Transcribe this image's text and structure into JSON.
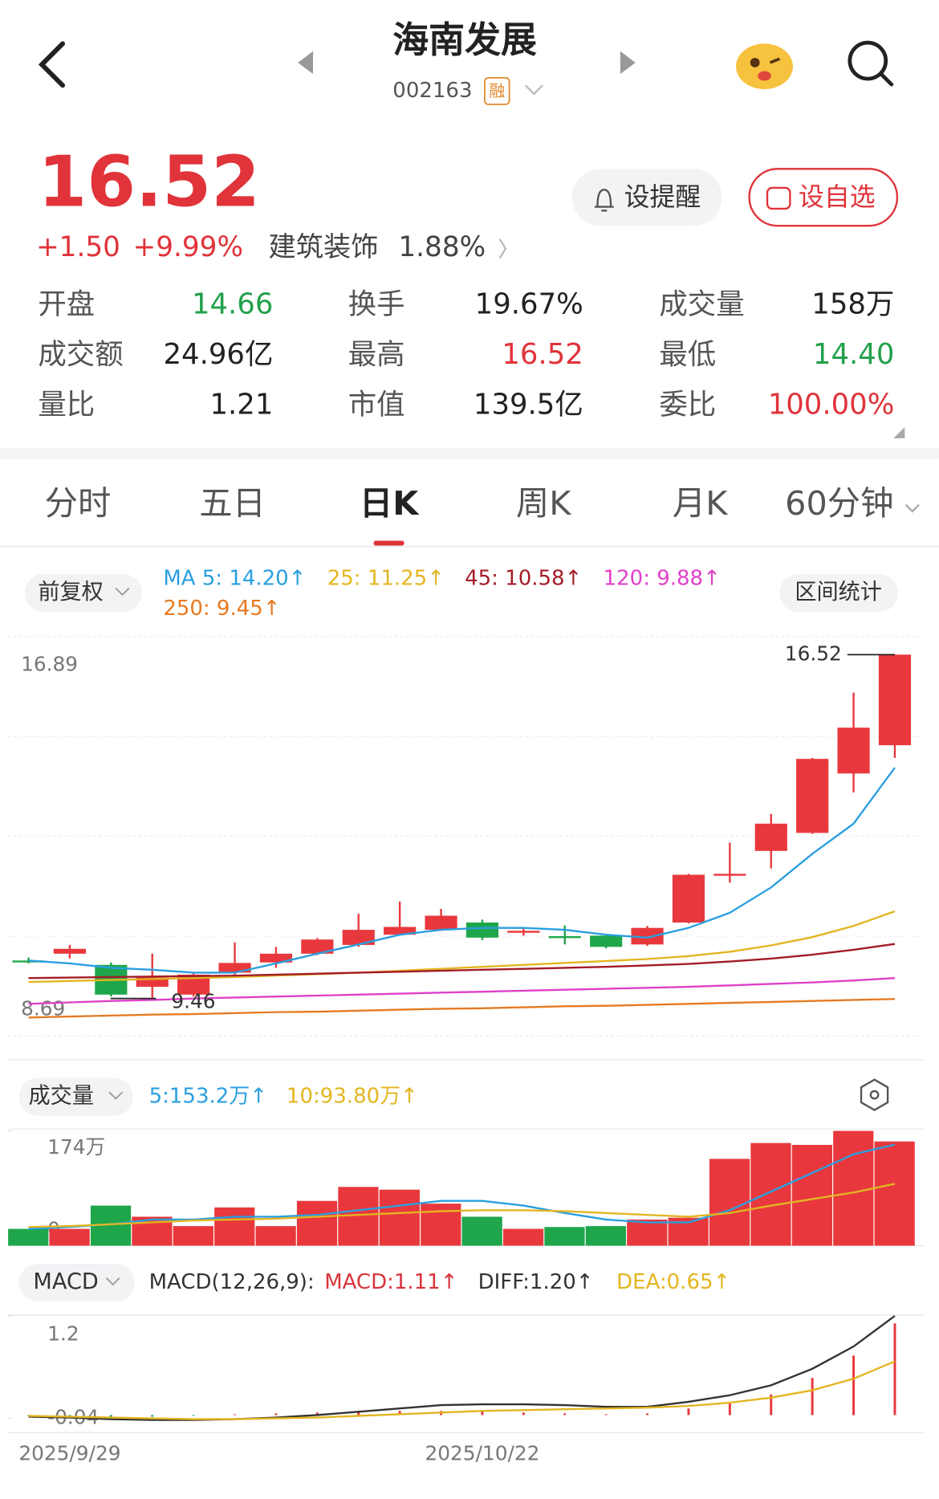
{
  "header": {
    "title": "海南发展",
    "code": "002163",
    "badge": "融"
  },
  "quote": {
    "price": "16.52",
    "change": "+1.50",
    "pct": "+9.99%",
    "sector": "建筑装饰",
    "sector_pct": "1.88%",
    "remind": "设提醒",
    "watch": "设自选"
  },
  "stats": [
    {
      "label": "开盘",
      "value": "14.66",
      "color": "#22a04a"
    },
    {
      "label": "换手",
      "value": "19.67%",
      "color": "#222222"
    },
    {
      "label": "成交量",
      "value": "158万",
      "color": "#222222"
    },
    {
      "label": "成交额",
      "value": "24.96亿",
      "color": "#222222"
    },
    {
      "label": "最高",
      "value": "16.52",
      "color": "#e0333a"
    },
    {
      "label": "最低",
      "value": "14.40",
      "color": "#22a04a"
    },
    {
      "label": "量比",
      "value": "1.21",
      "color": "#222222"
    },
    {
      "label": "市值",
      "value": "139.5亿",
      "color": "#222222"
    },
    {
      "label": "委比",
      "value": "100.00%",
      "color": "#e0333a"
    }
  ],
  "tabs": {
    "items": [
      "分时",
      "五日",
      "日K",
      "周K",
      "月K",
      "60分钟"
    ],
    "active": 2
  },
  "controls": {
    "adjust": "前复权",
    "range_stats": "区间统计",
    "volume": "成交量",
    "macd": "MACD",
    "macd_params": "MACD(12,26,9):"
  },
  "chart_data": [
    {
      "type": "candlestick",
      "categories": [
        null,
        "2025/9/29",
        null,
        null,
        null,
        null,
        null,
        null,
        null,
        null,
        null,
        "2025/10/22",
        null,
        null,
        null,
        null,
        null,
        null,
        null,
        null,
        null,
        null
      ],
      "open": [
        10.24,
        10.38,
        10.15,
        9.7,
        9.54,
        9.99,
        10.2,
        10.38,
        10.56,
        10.77,
        10.87,
        11.02,
        10.81,
        10.74,
        10.75,
        10.57,
        11.02,
        11.98,
        12.49,
        12.86,
        14.08,
        14.66
      ],
      "high": [
        10.3,
        10.56,
        10.2,
        10.38,
        9.98,
        10.61,
        10.52,
        10.7,
        11.2,
        11.45,
        11.3,
        11.08,
        10.9,
        10.96,
        10.78,
        10.95,
        12.02,
        12.66,
        13.25,
        14.4,
        15.74,
        16.52
      ],
      "low": [
        10.18,
        10.28,
        9.5,
        9.46,
        9.5,
        9.95,
        10.09,
        10.35,
        10.52,
        10.75,
        10.85,
        10.66,
        10.75,
        10.57,
        10.49,
        10.54,
        11.0,
        11.84,
        12.13,
        12.84,
        13.69,
        14.4
      ],
      "close": [
        10.22,
        10.48,
        9.54,
        9.89,
        9.95,
        10.19,
        10.38,
        10.67,
        10.87,
        10.93,
        11.16,
        10.71,
        10.85,
        10.72,
        10.52,
        10.91,
        12.0,
        12.02,
        13.05,
        14.38,
        15.02,
        16.52
      ],
      "up_color": "#e8383d",
      "down_color": "#1fa64a",
      "series": [
        {
          "name": "MA 5: 14.20↑",
          "color": "#2a9fe0",
          "values": [
            10.24,
            10.18,
            10.09,
            10.05,
            9.99,
            9.99,
            10.18,
            10.38,
            10.57,
            10.77,
            10.87,
            10.91,
            10.91,
            10.87,
            10.77,
            10.71,
            10.91,
            11.22,
            11.74,
            12.43,
            13.05,
            14.2
          ]
        },
        {
          "name": "25: 11.25↑",
          "color": "#e3b520",
          "values": [
            9.8,
            9.82,
            9.84,
            9.86,
            9.88,
            9.9,
            9.93,
            9.96,
            9.99,
            10.03,
            10.07,
            10.11,
            10.15,
            10.19,
            10.23,
            10.27,
            10.33,
            10.42,
            10.55,
            10.72,
            10.95,
            11.25
          ]
        },
        {
          "name": "45: 10.58↑",
          "color": "#a31c28",
          "values": [
            9.88,
            9.89,
            9.9,
            9.91,
            9.92,
            9.93,
            9.95,
            9.97,
            9.99,
            10.01,
            10.03,
            10.05,
            10.07,
            10.09,
            10.11,
            10.14,
            10.17,
            10.22,
            10.28,
            10.36,
            10.46,
            10.58
          ]
        },
        {
          "name": "120: 9.88↑",
          "color": "#e040c8",
          "values": [
            9.35,
            9.38,
            9.41,
            9.43,
            9.46,
            9.48,
            9.5,
            9.52,
            9.54,
            9.56,
            9.58,
            9.6,
            9.62,
            9.64,
            9.66,
            9.68,
            9.7,
            9.73,
            9.76,
            9.79,
            9.83,
            9.88
          ]
        },
        {
          "name": "250: 9.45↑",
          "color": "#e67a22",
          "values": [
            9.07,
            9.09,
            9.11,
            9.13,
            9.14,
            9.16,
            9.18,
            9.19,
            9.21,
            9.23,
            9.25,
            9.26,
            9.28,
            9.3,
            9.31,
            9.33,
            9.35,
            9.37,
            9.39,
            9.41,
            9.43,
            9.45
          ]
        }
      ],
      "max_label": 16.52,
      "min_label": 9.46,
      "ylim": [
        8.69,
        16.89
      ],
      "yticks": [
        16.89,
        8.69
      ],
      "grid": true
    },
    {
      "type": "bar",
      "values": [
        25.5,
        25.5,
        60.8,
        43.9,
        29.7,
        58.0,
        29.7,
        67.9,
        89.1,
        84.9,
        63.7,
        43.9,
        25.5,
        28.3,
        29.7,
        39.6,
        42.4,
        131.6,
        155.6,
        152.8,
        174,
        158
      ],
      "series": [
        {
          "name": "5:153.2万↑",
          "color": "#2a9fe0",
          "values": [
            25.5,
            28.3,
            32.5,
            39.6,
            39.6,
            43.9,
            43.9,
            46.7,
            53.8,
            60.8,
            67.9,
            67.9,
            60.8,
            49.5,
            39.6,
            35.4,
            35.4,
            53.8,
            82.0,
            110.3,
            138.6,
            153.2
          ]
        },
        {
          "name": "10:93.80万↑",
          "color": "#e3b520",
          "values": [
            28.3,
            29.7,
            32.5,
            35.4,
            38.2,
            39.6,
            41.0,
            43.9,
            46.7,
            49.5,
            52.3,
            53.8,
            53.8,
            52.3,
            49.5,
            46.7,
            43.9,
            49.5,
            60.8,
            70.7,
            80.6,
            93.8
          ]
        }
      ],
      "ylim": [
        0,
        174
      ],
      "yticks": [
        {
          "value": 174,
          "label": "174万"
        },
        0
      ]
    },
    {
      "type": "macd",
      "values": [
        -0.01,
        -0.02,
        -0.03,
        -0.02,
        -0.01,
        0.01,
        0.02,
        0.03,
        0.04,
        0.05,
        0.05,
        0.04,
        0.03,
        0.02,
        0.01,
        0.02,
        0.08,
        0.15,
        0.25,
        0.45,
        0.72,
        1.11
      ],
      "up_color": "#e8383d",
      "down_color": "#1fa64a",
      "series": [
        {
          "name": "MACD:1.11↑",
          "color": "#d8343c",
          "values": null
        },
        {
          "name": "DIFF:1.20↑",
          "color": "#333333",
          "values": [
            -0.02,
            -0.03,
            -0.05,
            -0.06,
            -0.06,
            -0.05,
            -0.03,
            0.0,
            0.04,
            0.08,
            0.12,
            0.13,
            0.13,
            0.12,
            0.1,
            0.1,
            0.16,
            0.24,
            0.36,
            0.56,
            0.83,
            1.2
          ]
        },
        {
          "name": "DEA:0.65↑",
          "color": "#e3b520",
          "values": [
            -0.01,
            -0.02,
            -0.03,
            -0.04,
            -0.05,
            -0.05,
            -0.04,
            -0.03,
            -0.01,
            0.01,
            0.03,
            0.05,
            0.06,
            0.07,
            0.08,
            0.09,
            0.11,
            0.15,
            0.21,
            0.3,
            0.44,
            0.65
          ]
        }
      ],
      "ylim": [
        -0.04,
        1.2
      ],
      "yticks": [
        1.2,
        -0.04
      ]
    }
  ]
}
